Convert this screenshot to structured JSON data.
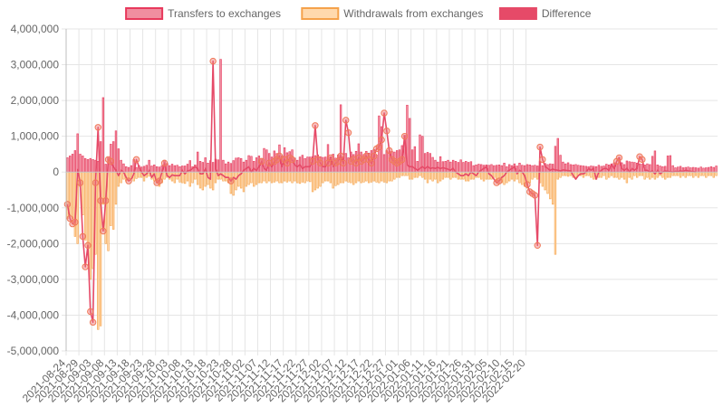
{
  "chart_data": {
    "type": "bar",
    "legend": {
      "position": "top",
      "items": [
        {
          "label": "Transfers to exchanges",
          "fill": "#f08ea0",
          "stroke": "#e8395c"
        },
        {
          "label": "Withdrawals from exchanges",
          "fill": "#ffd9ad",
          "stroke": "#f5a24b"
        },
        {
          "label": "Difference",
          "fill": "#e64a68",
          "stroke": "#e64a68"
        }
      ]
    },
    "grid": true,
    "ylim": [
      -5000000,
      4000000
    ],
    "y_ticks": [
      4000000,
      3000000,
      2000000,
      1000000,
      0,
      -1000000,
      -2000000,
      -3000000,
      -4000000,
      -5000000
    ],
    "y_tick_labels": [
      "4,000,000",
      "3,000,000",
      "2,000,000",
      "1,000,000",
      "0",
      "-1,000,000",
      "-2,000,000",
      "-3,000,000",
      "-4,000,000",
      "-5,000,000"
    ],
    "x_start": "2021-08-24",
    "x_tick_labels": [
      "2021-08-24",
      "2021-08-29",
      "2021-09-03",
      "2021-09-08",
      "2021-09-13",
      "2021-09-18",
      "2021-09-23",
      "2021-09-28",
      "2021-10-03",
      "2021-10-08",
      "2021-10-13",
      "2021-10-18",
      "2021-10-23",
      "2021-10-28",
      "2021-11-02",
      "2021-11-07",
      "2021-11-12",
      "2021-11-17",
      "2021-11-22",
      "2021-11-27",
      "2021-12-02",
      "2021-12-07",
      "2021-12-12",
      "2021-12-17",
      "2021-12-22",
      "2021-12-27",
      "2022-01-01",
      "2022-01-06",
      "2022-01-11",
      "2022-01-16",
      "2022-01-21",
      "2022-01-26",
      "2022-01-31",
      "2022-02-05",
      "2022-02-10",
      "2022-02-15",
      "2022-02-20"
    ],
    "colors": {
      "transfers_fill": "#f08ea0",
      "transfers_stroke": "#e8395c",
      "withdrawals_fill": "#ffd9ad",
      "withdrawals_stroke": "#f5a24b",
      "difference_line": "#e64a68"
    },
    "series": [
      {
        "name": "Transfers to exchanges",
        "values": [
          400000,
          450000,
          500000,
          600000,
          1070000,
          500000,
          450000,
          380000,
          350000,
          380000,
          350000,
          330000,
          300000,
          850000,
          2080000,
          220000,
          400000,
          780000,
          850000,
          1150000,
          650000,
          330000,
          230000,
          150000,
          130000,
          180000,
          350000,
          130000,
          180000,
          140000,
          160000,
          190000,
          330000,
          170000,
          200000,
          150000,
          140000,
          180000,
          330000,
          240000,
          180000,
          220000,
          180000,
          190000,
          150000,
          170000,
          170000,
          220000,
          320000,
          150000,
          200000,
          560000,
          300000,
          270000,
          400000,
          250000,
          320000,
          270000,
          360000,
          340000,
          3150000,
          330000,
          230000,
          280000,
          240000,
          320000,
          390000,
          400000,
          380000,
          280000,
          330000,
          460000,
          440000,
          300000,
          400000,
          450000,
          380000,
          660000,
          620000,
          520000,
          420000,
          590000,
          520000,
          760000,
          460000,
          680000,
          540000,
          570000,
          620000,
          390000,
          330000,
          420000,
          470000,
          380000,
          420000,
          420000,
          430000,
          460000,
          480000,
          430000,
          410000,
          420000,
          770000,
          430000,
          500000,
          390000,
          480000,
          1880000,
          430000,
          520000,
          400000,
          560000,
          490000,
          580000,
          790000,
          560000,
          490000,
          580000,
          530000,
          600000,
          630000,
          480000,
          1570000,
          1270000,
          490000,
          600000,
          570000,
          580000,
          560000,
          600000,
          620000,
          740000,
          1030000,
          1870000,
          1500000,
          620000,
          710000,
          300000,
          1040000,
          1000000,
          520000,
          550000,
          520000,
          410000,
          330000,
          280000,
          430000,
          290000,
          300000,
          330000,
          280000,
          330000,
          300000,
          270000,
          340000,
          270000,
          300000,
          270000,
          290000,
          180000,
          200000,
          220000,
          210000,
          190000,
          200000,
          190000,
          210000,
          180000,
          190000,
          200000,
          180000,
          250000,
          150000,
          210000,
          180000,
          230000,
          170000,
          250000,
          190000,
          180000,
          210000,
          200000,
          180000,
          190000,
          170000,
          300000,
          180000,
          240000,
          210000,
          230000,
          220000,
          720000,
          940000,
          470000,
          280000,
          230000,
          260000,
          210000,
          200000,
          210000,
          190000,
          180000,
          170000,
          160000,
          150000,
          170000,
          160000,
          150000,
          190000,
          160000,
          170000,
          220000,
          200000,
          230000,
          260000,
          240000,
          410000,
          260000,
          210000,
          310000,
          290000,
          280000,
          270000,
          250000,
          230000,
          220000,
          200000,
          230000,
          210000,
          440000,
          590000,
          200000,
          170000,
          150000,
          160000,
          450000,
          460000,
          180000,
          120000,
          140000,
          160000,
          120000,
          130000,
          140000,
          120000,
          130000,
          120000,
          110000,
          140000,
          110000,
          120000,
          130000,
          150000,
          130000,
          170000
        ]
      },
      {
        "name": "Withdrawals from exchanges",
        "values": [
          -1300000,
          -1200000,
          -1300000,
          -1800000,
          -2000000,
          -400000,
          -1200000,
          -1900000,
          -2100000,
          -3000000,
          -2700000,
          -2300000,
          -4400000,
          -4300000,
          -900000,
          -2000000,
          -2200000,
          -1500000,
          -1600000,
          -900000,
          -400000,
          -300000,
          -200000,
          -250000,
          -200000,
          -150000,
          -250000,
          -180000,
          -150000,
          -150000,
          -250000,
          -150000,
          -120000,
          -200000,
          -250000,
          -300000,
          -400000,
          -300000,
          -200000,
          -150000,
          -200000,
          -250000,
          -300000,
          -200000,
          -280000,
          -300000,
          -320000,
          -250000,
          -400000,
          -300000,
          -200000,
          -350000,
          -450000,
          -500000,
          -400000,
          -350000,
          -450000,
          -500000,
          -300000,
          -200000,
          -200000,
          -250000,
          -250000,
          -300000,
          -600000,
          -650000,
          -500000,
          -400000,
          -450000,
          -550000,
          -400000,
          -350000,
          -300000,
          -400000,
          -350000,
          -300000,
          -300000,
          -250000,
          -300000,
          -250000,
          -300000,
          -280000,
          -250000,
          -300000,
          -300000,
          -250000,
          -280000,
          -250000,
          -300000,
          -250000,
          -300000,
          -320000,
          -280000,
          -300000,
          -250000,
          -270000,
          -550000,
          -500000,
          -450000,
          -400000,
          -300000,
          -250000,
          -250000,
          -300000,
          -450000,
          -380000,
          -350000,
          -300000,
          -300000,
          -250000,
          -280000,
          -300000,
          -350000,
          -300000,
          -250000,
          -300000,
          -280000,
          -250000,
          -300000,
          -280000,
          -250000,
          -280000,
          -300000,
          -250000,
          -280000,
          -300000,
          -250000,
          -250000,
          -200000,
          -150000,
          -150000,
          -100000,
          -100000,
          -100000,
          -200000,
          -200000,
          -150000,
          -150000,
          -100000,
          -150000,
          -200000,
          -300000,
          -200000,
          -250000,
          -200000,
          -300000,
          -250000,
          -200000,
          -150000,
          -150000,
          -200000,
          -150000,
          -150000,
          -200000,
          -200000,
          -200000,
          -250000,
          -250000,
          -200000,
          -200000,
          -150000,
          -150000,
          -200000,
          -250000,
          -200000,
          -200000,
          -200000,
          -150000,
          -200000,
          -250000,
          -300000,
          -350000,
          -300000,
          -250000,
          -200000,
          -250000,
          -200000,
          -300000,
          -350000,
          -400000,
          -450000,
          -300000,
          -200000,
          -150000,
          -200000,
          -300000,
          -400000,
          -500000,
          -600000,
          -750000,
          -900000,
          -2300000,
          -200000,
          -150000,
          -100000,
          -100000,
          -120000,
          -100000,
          -150000,
          -150000,
          -100000,
          -100000,
          -150000,
          -100000,
          -100000,
          -150000,
          -200000,
          -200000,
          -150000,
          -150000,
          -100000,
          -200000,
          -150000,
          -100000,
          -150000,
          -150000,
          -200000,
          -150000,
          -200000,
          -300000,
          -150000,
          -200000,
          -100000,
          -150000,
          -100000,
          -100000,
          -200000,
          -150000,
          -200000,
          -150000,
          -200000,
          -150000,
          -100000,
          -150000,
          -200000,
          -150000,
          -150000,
          -100000,
          -100000,
          -100000,
          -150000,
          -100000,
          -150000,
          -100000,
          -100000,
          -150000,
          -100000,
          -150000,
          -100000,
          -100000,
          -150000,
          -100000,
          -100000,
          -150000,
          -100000
        ]
      },
      {
        "name": "Difference",
        "values": [
          -900000,
          -1300000,
          -1450000,
          -1400000,
          70000,
          -300000,
          -1800000,
          -2650000,
          -2050000,
          -3900000,
          -4200000,
          -300000,
          1250000,
          -800000,
          -1650000,
          -800000,
          350000,
          300000,
          150000,
          50000,
          -100000,
          50000,
          0,
          -150000,
          -250000,
          -200000,
          -50000,
          350000,
          150000,
          0,
          -100000,
          -50000,
          50000,
          -150000,
          -50000,
          -300000,
          -250000,
          0,
          250000,
          -100000,
          -150000,
          -80000,
          -100000,
          -100000,
          -100000,
          50000,
          -50000,
          30000,
          50000,
          100000,
          150000,
          100000,
          -50000,
          -50000,
          100000,
          -150000,
          -200000,
          3100000,
          100000,
          -100000,
          -50000,
          -100000,
          -150000,
          -150000,
          -250000,
          -150000,
          -200000,
          -100000,
          -50000,
          50000,
          100000,
          150000,
          0,
          100000,
          50000,
          150000,
          300000,
          100000,
          50000,
          250000,
          150000,
          300000,
          350000,
          450000,
          150000,
          350000,
          250000,
          400000,
          350000,
          200000,
          150000,
          200000,
          100000,
          150000,
          150000,
          150000,
          300000,
          1300000,
          350000,
          250000,
          150000,
          150000,
          250000,
          400000,
          150000,
          250000,
          300000,
          450000,
          250000,
          1450000,
          1100000,
          300000,
          350000,
          250000,
          400000,
          300000,
          350000,
          450000,
          350000,
          250000,
          450000,
          650000,
          700000,
          900000,
          1650000,
          1150000,
          600000,
          350000,
          300000,
          250000,
          300000,
          350000,
          1000000,
          200000,
          150000,
          150000,
          100000,
          50000,
          100000,
          150000,
          100000,
          150000,
          100000,
          120000,
          100000,
          130000,
          100000,
          120000,
          100000,
          80000,
          50000,
          100000,
          0,
          -50000,
          -100000,
          -100000,
          -50000,
          -100000,
          0,
          -50000,
          -100000,
          0,
          50000,
          100000,
          150000,
          -50000,
          -100000,
          -200000,
          -300000,
          -250000,
          -150000,
          -100000,
          0,
          50000,
          100000,
          150000,
          -50000,
          50000,
          0,
          -100000,
          -350000,
          -550000,
          -600000,
          -650000,
          -2050000,
          700000,
          350000,
          150000,
          100000,
          50000,
          80000,
          60000,
          50000,
          30000,
          60000,
          50000,
          40000,
          30000,
          -100000,
          -200000,
          -100000,
          -50000,
          -50000,
          0,
          100000,
          50000,
          100000,
          -200000,
          0,
          50000,
          100000,
          100000,
          50000,
          200000,
          100000,
          300000,
          400000,
          100000,
          50000,
          100000,
          0,
          100000,
          50000,
          100000,
          430000,
          350000,
          50000,
          50000,
          0,
          30000,
          -50000,
          50000,
          -50000,
          0,
          30000,
          20000,
          10000,
          0,
          20000,
          10000,
          30000,
          20000,
          50000,
          30000,
          20000,
          10000,
          0
        ]
      }
    ]
  }
}
